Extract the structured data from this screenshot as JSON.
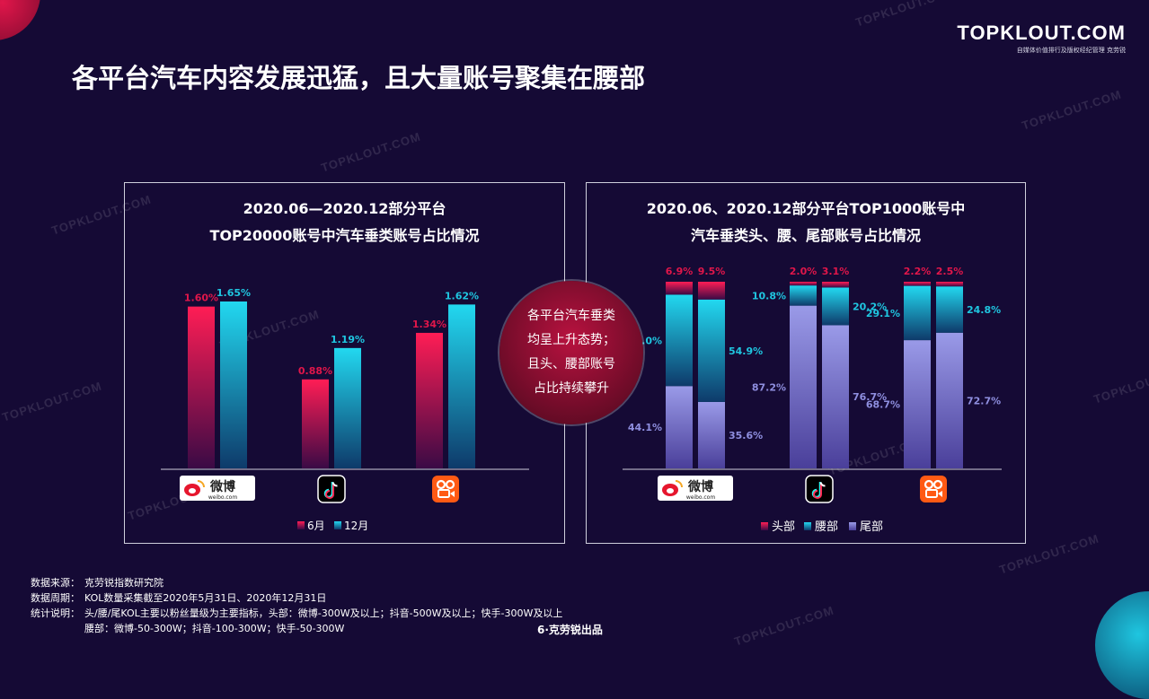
{
  "header": {
    "title": "各平台汽车内容发展迅猛，且大量账号聚集在腰部",
    "logo_main": "TOPKLOUT.COM",
    "logo_sub": "自媒体价值排行及版权经纪管理  克劳锐"
  },
  "watermark_text": "TOPKLOUT.COM",
  "center_note": {
    "lines": [
      "各平台汽车垂类",
      "均呈上升态势；",
      "且头、腰部账号",
      "占比持续攀升"
    ]
  },
  "platforms": [
    {
      "name": "微博",
      "sub": "weibo.com",
      "icon": "weibo-logo"
    },
    {
      "name": "抖音",
      "icon": "douyin-logo"
    },
    {
      "name": "快手",
      "icon": "kuaishou-logo"
    }
  ],
  "footer": {
    "source_label": "数据来源：",
    "source": "克劳锐指数研究院",
    "period_label": "数据周期：",
    "period": "KOL数量采集截至2020年5月31日、2020年12月31日",
    "note_label": "统计说明：",
    "note_line1": "头/腰/尾KOL主要以粉丝量级为主要指标，头部：微博-300W及以上；抖音-500W及以上；快手-300W及以上",
    "note_line2": "腰部：微博-50-300W；抖音-100-300W；快手-50-300W",
    "page": "6·克劳锐出品"
  },
  "colors": {
    "background": "#150a35",
    "red": "#e0164a",
    "cyan": "#1fc6e0",
    "lavender": "#8f8fe0"
  },
  "chart_data": [
    {
      "type": "bar",
      "title": "2020.06—2020.12部分平台\nTOP20000账号中汽车垂类账号占比情况",
      "title_lines": [
        "2020.06—2020.12部分平台",
        "TOP20000账号中汽车垂类账号占比情况"
      ],
      "categories": [
        "微博",
        "抖音",
        "快手"
      ],
      "series": [
        {
          "name": "6月",
          "values": [
            1.6,
            0.88,
            1.34
          ],
          "labels": [
            "1.60%",
            "0.88%",
            "1.34%"
          ],
          "color": "#e0164a"
        },
        {
          "name": "12月",
          "values": [
            1.65,
            1.19,
            1.62
          ],
          "labels": [
            "1.65%",
            "1.19%",
            "1.62%"
          ],
          "color": "#1fc6e0"
        }
      ],
      "ylim": [
        0,
        2.2
      ],
      "legend": "bottom",
      "grid": false
    },
    {
      "type": "bar",
      "stacked": true,
      "title": "2020.06、2020.12部分平台TOP1000账号中\n汽车垂类头、腰、尾部账号占比情况",
      "title_lines": [
        "2020.06、2020.12部分平台TOP1000账号中",
        "汽车垂类头、腰、尾部账号占比情况"
      ],
      "categories": [
        "微博",
        "抖音",
        "快手"
      ],
      "columns": [
        "2020.06",
        "2020.12"
      ],
      "series": [
        {
          "name": "头部",
          "values": [
            [
              6.9,
              9.5
            ],
            [
              2.0,
              3.1
            ],
            [
              2.2,
              2.5
            ]
          ],
          "labels": [
            [
              "6.9%",
              "9.5%"
            ],
            [
              "2.0%",
              "3.1%"
            ],
            [
              "2.2%",
              "2.5%"
            ]
          ],
          "color": "#e0164a"
        },
        {
          "name": "腰部",
          "values": [
            [
              49.0,
              54.9
            ],
            [
              10.8,
              20.2
            ],
            [
              29.1,
              24.8
            ]
          ],
          "labels": [
            [
              "49.0%",
              "54.9%"
            ],
            [
              "10.8%",
              "20.2%"
            ],
            [
              "29.1%",
              "24.8%"
            ]
          ],
          "color": "#1fc6e0"
        },
        {
          "name": "尾部",
          "values": [
            [
              44.1,
              35.6
            ],
            [
              87.2,
              76.7
            ],
            [
              68.7,
              72.7
            ]
          ],
          "labels": [
            [
              "44.1%",
              "35.6%"
            ],
            [
              "87.2%",
              "76.7%"
            ],
            [
              "68.7%",
              "72.7%"
            ]
          ],
          "color": "#8f8fe0"
        }
      ],
      "ylim": [
        0,
        100
      ],
      "legend": "bottom",
      "grid": false
    }
  ]
}
